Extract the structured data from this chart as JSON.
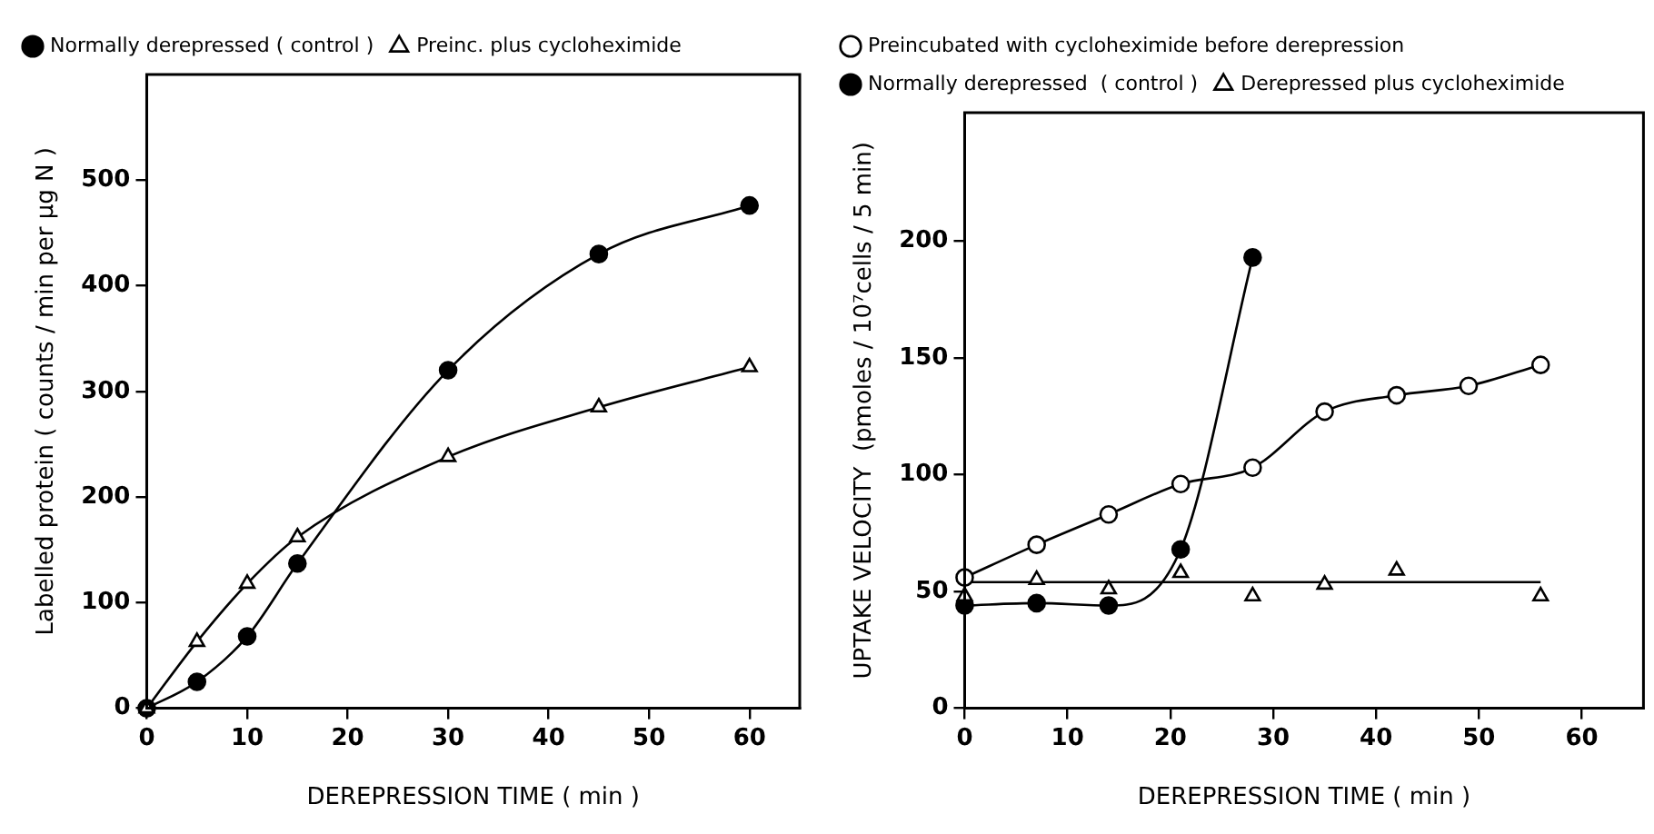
{
  "chart_data": [
    {
      "type": "line",
      "xlabel": "DEREPRESSION TIME ( min )",
      "ylabel": "Labelled protein ( counts / min per µg N )",
      "xlim": [
        0,
        65
      ],
      "xticks": [
        0,
        10,
        20,
        30,
        40,
        50,
        60
      ],
      "ylim": [
        0,
        600
      ],
      "yticks": [
        0,
        100,
        200,
        300,
        400,
        500
      ],
      "grid": false,
      "legend": "top left",
      "series": [
        {
          "name": "Normally derepressed ( control )",
          "color": "#000000",
          "marker": "circle",
          "x": [
            0,
            5,
            10,
            15,
            30,
            45,
            60
          ],
          "values": [
            0,
            25,
            68,
            137,
            320,
            430,
            476
          ]
        },
        {
          "name": "Preinc. plus cycloheximide",
          "color": "#000000",
          "marker": "triangle",
          "colors": [
            "#ffffff",
            "#ffffff",
            "#ffffff",
            "#ffffff",
            "#ffffff",
            "#ffffff",
            "#ffffff"
          ],
          "x": [
            0,
            5,
            10,
            15,
            30,
            45,
            60
          ],
          "values": [
            0,
            63,
            118,
            162,
            238,
            285,
            323
          ]
        }
      ]
    },
    {
      "type": "line",
      "xlabel": "DEREPRESSION TIME ( min )",
      "ylabel": "UPTAKE VELOCITY  (pmoles / 10⁷cells / 5 min)",
      "xlim": [
        0,
        66
      ],
      "xticks": [
        0,
        10,
        20,
        30,
        40,
        50,
        60
      ],
      "ylim": [
        0,
        255
      ],
      "yticks": [
        0,
        50,
        100,
        150,
        200
      ],
      "grid": false,
      "legend": "top left",
      "series": [
        {
          "name": "Preincubated with cycloheximide before derepression",
          "color": "#000000",
          "marker": "circle",
          "colors": [
            "#ffffff",
            "#ffffff",
            "#ffffff",
            "#ffffff",
            "#ffffff",
            "#ffffff",
            "#ffffff",
            "#ffffff",
            "#ffffff"
          ],
          "x": [
            0,
            7,
            14,
            21,
            28,
            35,
            42,
            49,
            56
          ],
          "values": [
            56,
            70,
            83,
            96,
            103,
            127,
            134,
            138,
            147
          ]
        },
        {
          "name": "Normally derepressed  ( control )",
          "color": "#000000",
          "marker": "circle",
          "x": [
            0,
            7,
            14,
            21,
            28
          ],
          "values": [
            44,
            45,
            44,
            68,
            193
          ]
        },
        {
          "name": "Derepressed plus cycloheximide",
          "type": "scatter",
          "color": "#000000",
          "marker": "triangle",
          "colors": [
            "#ffffff",
            "#ffffff",
            "#ffffff",
            "#ffffff",
            "#ffffff",
            "#ffffff",
            "#ffffff",
            "#ffffff"
          ],
          "x": [
            0,
            7,
            14,
            21,
            28,
            35,
            42,
            56
          ],
          "values": [
            48,
            55,
            51,
            58,
            48,
            53,
            59,
            48
          ]
        },
        {
          "type": "line",
          "color": "#000000",
          "marker": "none",
          "x": [
            0,
            56
          ],
          "values": [
            54,
            54
          ]
        }
      ]
    }
  ]
}
